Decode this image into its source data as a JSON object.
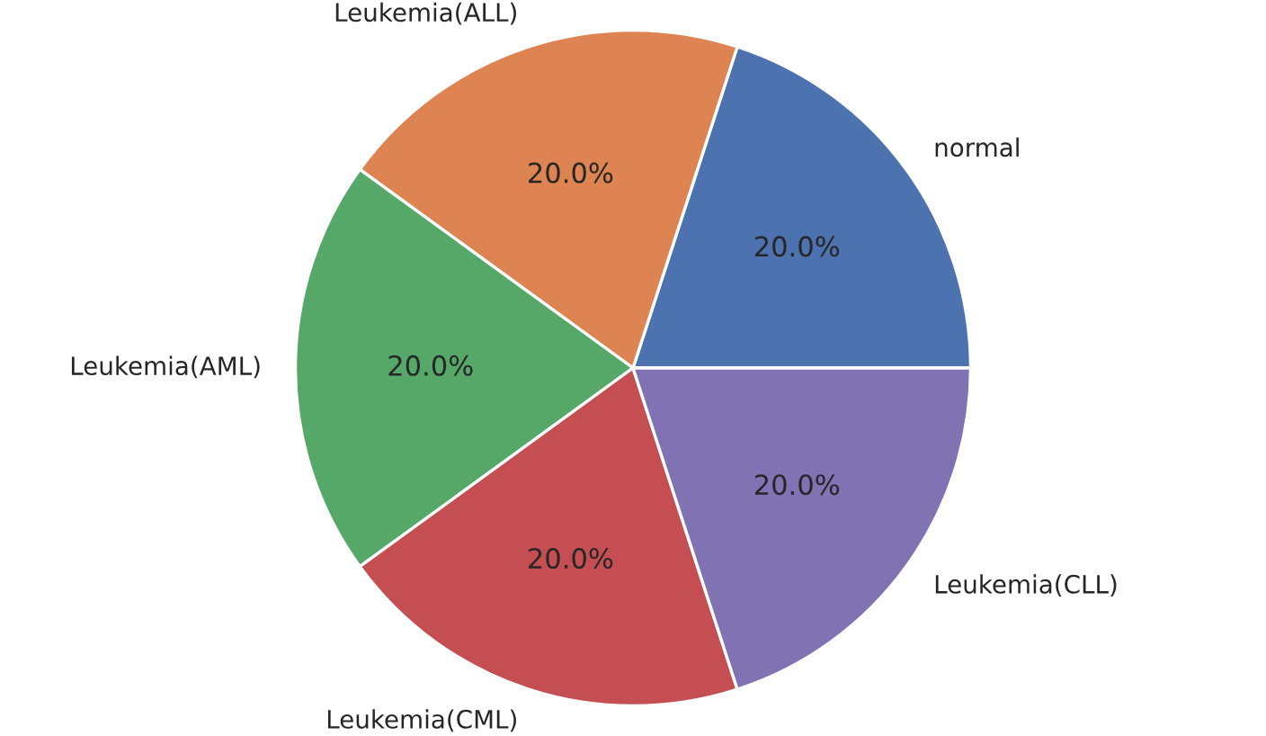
{
  "chart_data": {
    "type": "pie",
    "categories": [
      "normal",
      "Leukemia(ALL)",
      "Leukemia(AML)",
      "Leukemia(CML)",
      "Leukemia(CLL)"
    ],
    "values": [
      20,
      20,
      20,
      20,
      20
    ],
    "colors": [
      "#4c72b0",
      "#dd8452",
      "#55a868",
      "#c44e52",
      "#8172b3"
    ],
    "value_labels": [
      "20.0%",
      "20.0%",
      "20.0%",
      "20.0%",
      "20.0%"
    ],
    "legend": false
  }
}
